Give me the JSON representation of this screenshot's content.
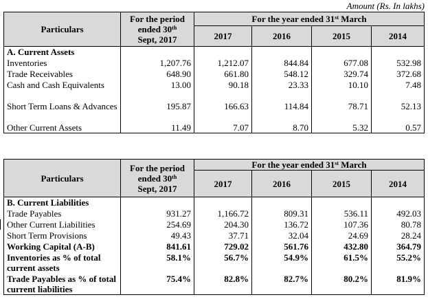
{
  "amount_note": "Amount (Rs. In lakhs)",
  "header": {
    "particulars": "Particulars",
    "period_line1": "For the period",
    "period_line2": "ended 30",
    "period_sup": "th",
    "period_line3": "Sept, 2017",
    "year_prefix": "For the year ended 31",
    "year_sup": "st",
    "year_suffix": " March",
    "years": [
      "2017",
      "2016",
      "2015",
      "2014"
    ]
  },
  "table_a": {
    "section_title": "A. Current Assets",
    "rows": [
      {
        "label": "Inventories",
        "values": [
          "1,207.76",
          "1,212.07",
          "844.84",
          "677.08",
          "532.98"
        ]
      },
      {
        "label": "Trade Receivables",
        "values": [
          "648.90",
          "661.80",
          "548.12",
          "329.74",
          "372.68"
        ]
      },
      {
        "label": "Cash and Cash Equivalents",
        "values": [
          "13.00",
          "90.18",
          "23.33",
          "10.10",
          "7.48"
        ]
      },
      {
        "label": "Short Term Loans & Advances",
        "values": [
          "195.87",
          "166.63",
          "114.84",
          "78.71",
          "52.13"
        ]
      },
      {
        "label": "Other Current Assets",
        "values": [
          "11.49",
          "7.07",
          "8.70",
          "5.32",
          "0.57"
        ]
      }
    ]
  },
  "table_b": {
    "section_title": "B. Current Liabilities",
    "rows": [
      {
        "label": "Trade Payables",
        "values": [
          "931.27",
          "1,166.72",
          "809.31",
          "536.11",
          "492.03"
        ],
        "bold": false
      },
      {
        "label": "Other Current Liabilities",
        "values": [
          "254.69",
          "204.30",
          "136.72",
          "107.36",
          "80.78"
        ],
        "bold": false
      },
      {
        "label": "Short Term Provisions",
        "values": [
          "49.43",
          "37.71",
          "32.04",
          "24.69",
          "28.24"
        ],
        "bold": false
      },
      {
        "label": "Working Capital (A-B)",
        "values": [
          "841.61",
          "729.02",
          "561.76",
          "432.80",
          "364.79"
        ],
        "bold": true
      },
      {
        "label": "Inventories as % of total current assets",
        "values": [
          "58.1%",
          "56.7%",
          "54.9%",
          "61.5%",
          "55.2%"
        ],
        "bold": true
      },
      {
        "label": "Trade Payables as % of total current liabilities",
        "values": [
          "75.4%",
          "82.8%",
          "82.7%",
          "80.2%",
          "81.9%"
        ],
        "bold": true
      }
    ]
  }
}
